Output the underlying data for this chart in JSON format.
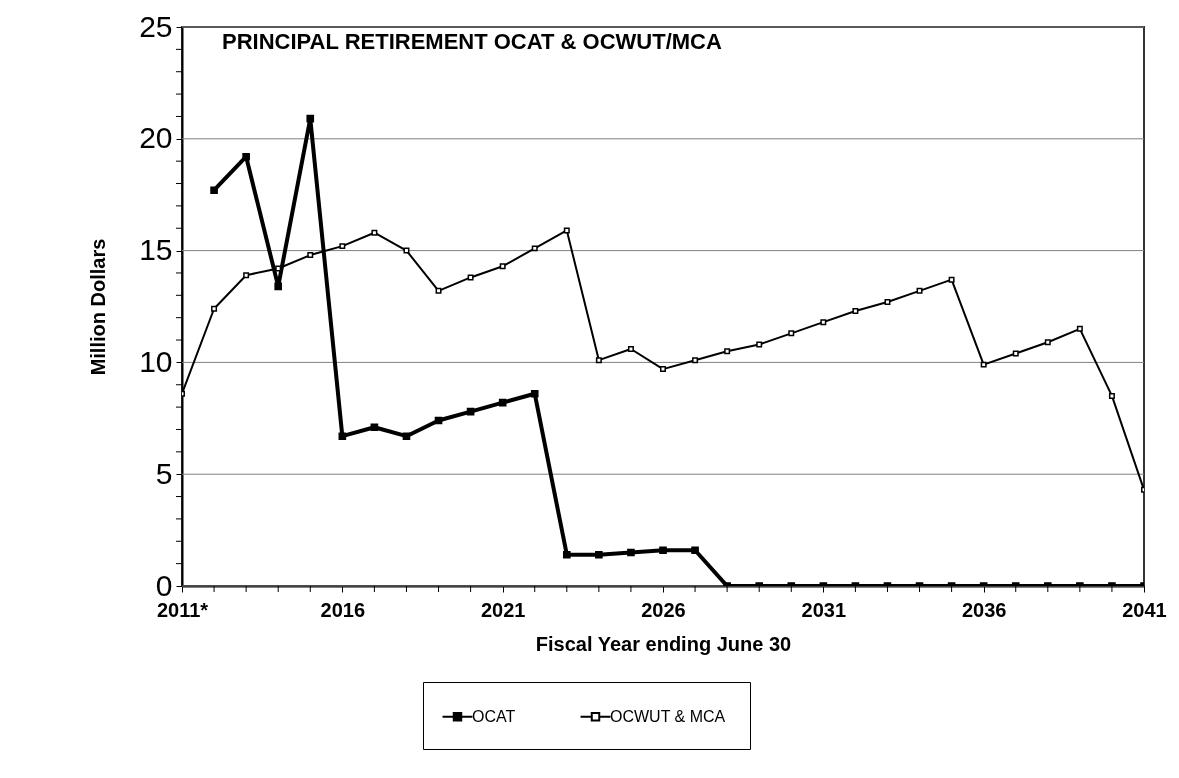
{
  "chart_data": {
    "type": "line",
    "title": "PRINCIPAL RETIREMENT OCAT & OCWUT/MCA",
    "xlabel": "Fiscal Year ending June 30",
    "ylabel": "Million Dollars",
    "x": [
      2011,
      2012,
      2013,
      2014,
      2015,
      2016,
      2017,
      2018,
      2019,
      2020,
      2021,
      2022,
      2023,
      2024,
      2025,
      2026,
      2027,
      2028,
      2029,
      2030,
      2031,
      2032,
      2033,
      2034,
      2035,
      2036,
      2037,
      2038,
      2039,
      2040,
      2041
    ],
    "series": [
      {
        "name": "OCAT",
        "color": "#000000",
        "values": [
          null,
          17.7,
          19.2,
          13.4,
          20.9,
          6.7,
          7.1,
          6.7,
          7.4,
          7.8,
          8.2,
          8.6,
          1.4,
          1.4,
          1.5,
          1.6,
          1.6,
          0,
          0,
          0,
          0,
          0,
          0,
          0,
          0,
          0,
          0,
          0,
          0,
          0,
          0
        ]
      },
      {
        "name": "OCWUT & MCA",
        "color": "#000000",
        "values": [
          8.6,
          12.4,
          13.9,
          14.2,
          14.8,
          15.2,
          15.8,
          15.0,
          13.2,
          13.8,
          14.3,
          15.1,
          15.9,
          10.1,
          10.6,
          9.7,
          10.1,
          10.5,
          10.8,
          11.3,
          11.8,
          12.3,
          12.7,
          13.2,
          13.7,
          9.9,
          10.4,
          10.9,
          11.5,
          8.5,
          4.3
        ]
      }
    ],
    "xlim": [
      2011,
      2041
    ],
    "xticks": [
      {
        "value": 2011,
        "label": "2011*"
      },
      {
        "value": 2012,
        "label": null
      },
      {
        "value": 2013,
        "label": null
      },
      {
        "value": 2014,
        "label": null
      },
      {
        "value": 2015,
        "label": null
      },
      2016,
      {
        "value": 2017,
        "label": null
      },
      {
        "value": 2018,
        "label": null
      },
      {
        "value": 2019,
        "label": null
      },
      {
        "value": 2020,
        "label": null
      },
      2021,
      {
        "value": 2022,
        "label": null
      },
      {
        "value": 2023,
        "label": null
      },
      {
        "value": 2024,
        "label": null
      },
      {
        "value": 2025,
        "label": null
      },
      2026,
      {
        "value": 2027,
        "label": null
      },
      {
        "value": 2028,
        "label": null
      },
      {
        "value": 2029,
        "label": null
      },
      {
        "value": 2030,
        "label": null
      },
      2031,
      {
        "value": 2032,
        "label": null
      },
      {
        "value": 2033,
        "label": null
      },
      {
        "value": 2034,
        "label": null
      },
      {
        "value": 2035,
        "label": null
      },
      2036,
      {
        "value": 2037,
        "label": null
      },
      {
        "value": 2038,
        "label": null
      },
      {
        "value": 2039,
        "label": null
      },
      {
        "value": 2040,
        "label": null
      },
      2041
    ],
    "ylim": [
      0,
      25
    ],
    "yticks": [
      0,
      {
        "value": 1,
        "label": null
      },
      {
        "value": 2,
        "label": null
      },
      {
        "value": 3,
        "label": null
      },
      {
        "value": 4,
        "label": null
      },
      5,
      {
        "value": 6,
        "label": null
      },
      {
        "value": 7,
        "label": null
      },
      {
        "value": 8,
        "label": null
      },
      {
        "value": 9,
        "label": null
      },
      10,
      {
        "value": 11,
        "label": null
      },
      {
        "value": 12,
        "label": null
      },
      {
        "value": 13,
        "label": null
      },
      {
        "value": 14,
        "label": null
      },
      15,
      {
        "value": 16,
        "label": null
      },
      {
        "value": 17,
        "label": null
      },
      {
        "value": 18,
        "label": null
      },
      {
        "value": 19,
        "label": null
      },
      20,
      {
        "value": 21,
        "label": null
      },
      {
        "value": 22,
        "label": null
      },
      {
        "value": 23,
        "label": null
      },
      {
        "value": 24,
        "label": null
      },
      25
    ],
    "grid": "y",
    "legend": "bottom",
    "marker": "square",
    "line_style": "solid"
  }
}
